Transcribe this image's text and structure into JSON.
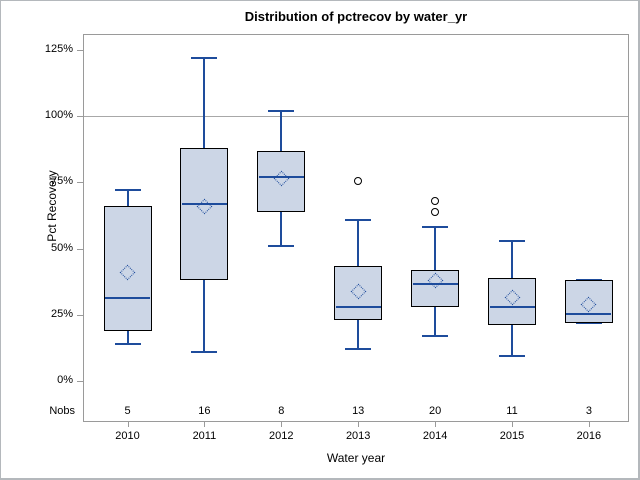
{
  "chart_data": {
    "type": "boxplot",
    "title": "Distribution of pctrecov by water_yr",
    "xlabel": "Water year",
    "ylabel": "Pct Recovery",
    "nobs_label": "Nobs",
    "categories": [
      "2010",
      "2011",
      "2012",
      "2013",
      "2014",
      "2015",
      "2016"
    ],
    "yticks": [
      0,
      25,
      50,
      75,
      100,
      125
    ],
    "ytick_suffix": "%",
    "ylim": [
      -16,
      131
    ],
    "refline": 100,
    "grid": false,
    "legend": false,
    "boxes": [
      {
        "category": "2010",
        "nobs": 5,
        "min": 14,
        "q1": 19,
        "median": 31.5,
        "mean": 41,
        "q3": 66,
        "max": 72,
        "outliers": []
      },
      {
        "category": "2011",
        "nobs": 16,
        "min": 11,
        "q1": 38,
        "median": 67,
        "mean": 66,
        "q3": 88,
        "max": 122,
        "outliers": []
      },
      {
        "category": "2012",
        "nobs": 8,
        "min": 51,
        "q1": 64,
        "median": 77,
        "mean": 76.5,
        "q3": 87,
        "max": 102,
        "outliers": []
      },
      {
        "category": "2013",
        "nobs": 13,
        "min": 12,
        "q1": 23,
        "median": 28,
        "mean": 34,
        "q3": 43.5,
        "max": 61,
        "outliers": [
          75.5
        ]
      },
      {
        "category": "2014",
        "nobs": 20,
        "min": 17,
        "q1": 28,
        "median": 36.5,
        "mean": 38,
        "q3": 42,
        "max": 58,
        "outliers": [
          68,
          64
        ]
      },
      {
        "category": "2015",
        "nobs": 11,
        "min": 9.5,
        "q1": 21,
        "median": 28,
        "mean": 31.5,
        "q3": 39,
        "max": 53,
        "outliers": []
      },
      {
        "category": "2016",
        "nobs": 3,
        "min": 22,
        "q1": 22,
        "median": 25.5,
        "mean": 29,
        "q3": 38,
        "max": 38,
        "outliers": []
      }
    ]
  },
  "colors": {
    "box_fill": "#ccd6e6",
    "box_border": "#000000",
    "line_blue": "#1e4c9c",
    "frame_gray": "#9a9a9a",
    "grid_gray": "#a8a8a8",
    "text": "#000000",
    "outlier": "#000000",
    "background": "#ffffff"
  }
}
